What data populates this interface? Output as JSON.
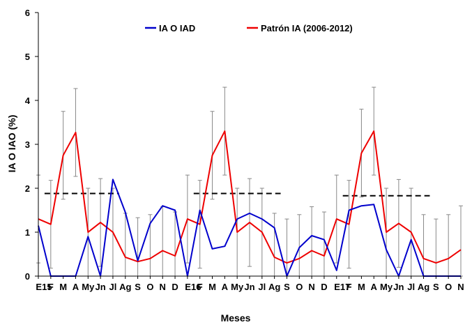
{
  "chart_data": {
    "type": "line",
    "title": "",
    "xlabel": "Meses",
    "ylabel": "IA O IAO (%)",
    "ylim": [
      0,
      6
    ],
    "yticks": [
      0,
      1,
      2,
      3,
      4,
      5,
      6
    ],
    "grid": false,
    "legend_position": "top",
    "categories": [
      "E15",
      "F",
      "M",
      "A",
      "My",
      "Jn",
      "Jl",
      "Ag",
      "S",
      "O",
      "N",
      "D",
      "E16",
      "F",
      "M",
      "A",
      "My",
      "Jn",
      "Jl",
      "Ag",
      "S",
      "O",
      "N",
      "D",
      "E17",
      "F",
      "M",
      "A",
      "My",
      "Jn",
      "Jl",
      "Ag",
      "S",
      "O",
      "N"
    ],
    "series": [
      {
        "name": "IA O IAD",
        "color": "#0000cc",
        "values": [
          1.15,
          0,
          0,
          0,
          0.9,
          0,
          2.2,
          1.45,
          0.35,
          1.2,
          1.6,
          1.5,
          0,
          1.5,
          0.62,
          0.68,
          1.3,
          1.43,
          1.3,
          1.1,
          0,
          0.65,
          0.92,
          0.83,
          0.13,
          1.5,
          1.6,
          1.63,
          0.6,
          0,
          0.83,
          0,
          0,
          0,
          0
        ]
      },
      {
        "name": "Patrón IA (2006-2012)",
        "color": "#ee0000",
        "values": [
          1.3,
          1.18,
          2.75,
          3.27,
          1.0,
          1.22,
          1.0,
          0.43,
          0.33,
          0.4,
          0.58,
          0.46,
          1.3,
          1.18,
          2.75,
          3.3,
          1.0,
          1.22,
          1.0,
          0.43,
          0.3,
          0.4,
          0.58,
          0.46,
          1.3,
          1.18,
          2.8,
          3.3,
          1.0,
          1.2,
          1.0,
          0.4,
          0.3,
          0.4,
          0.6
        ],
        "error_upper": [
          2.3,
          2.18,
          3.75,
          4.27,
          2.0,
          2.22,
          2.0,
          1.43,
          1.33,
          1.4,
          1.58,
          1.46,
          2.3,
          2.18,
          3.75,
          4.3,
          2.0,
          2.22,
          2.0,
          1.43,
          1.3,
          1.4,
          1.58,
          1.46,
          2.3,
          2.18,
          3.8,
          4.3,
          2.0,
          2.2,
          2.0,
          1.4,
          1.3,
          1.4,
          1.6
        ],
        "error_lower": [
          0.3,
          0.18,
          1.75,
          2.27,
          0,
          0.22,
          0,
          0,
          0,
          0,
          0,
          0,
          0.3,
          0.18,
          1.75,
          2.3,
          0,
          0.22,
          0,
          0,
          0,
          0,
          0,
          0,
          0.3,
          0.18,
          1.8,
          2.3,
          0,
          0.2,
          0,
          0,
          0,
          0,
          0
        ]
      }
    ],
    "reference_lines": [
      {
        "value": 1.88,
        "from_index": 0.5,
        "to_index": 6.5
      },
      {
        "value": 1.88,
        "from_index": 12.5,
        "to_index": 19.5
      },
      {
        "value": 1.83,
        "from_index": 24.5,
        "to_index": 31.5
      }
    ]
  }
}
